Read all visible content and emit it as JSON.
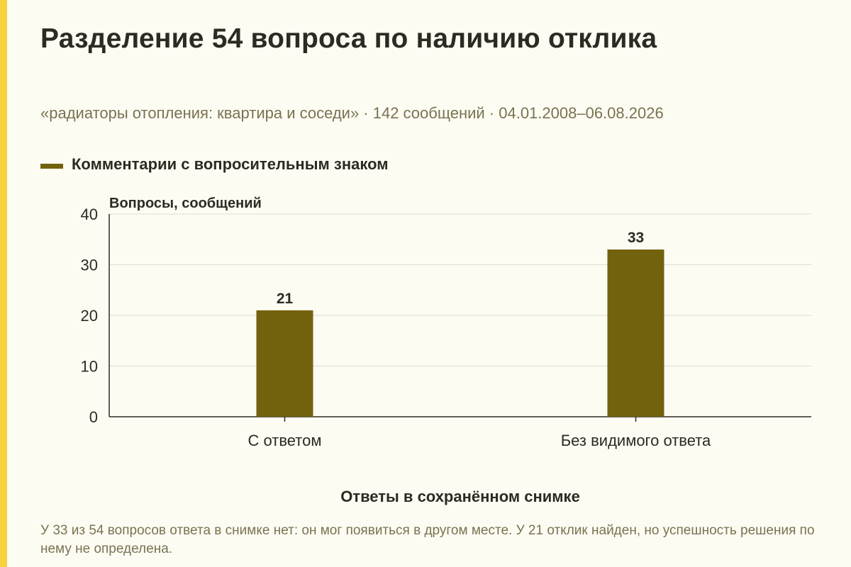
{
  "title": "Разделение 54 вопроса по наличию отклика",
  "subtitle": "«радиаторы отопления: квартира и соседи» · 142 сообщений · 04.01.2008–06.08.2026",
  "note": "У 33 из 54 вопросов ответа в снимке нет: он мог появиться в другом месте. У 21 отклик найден, но успешность решения по нему не определена.",
  "colors": {
    "bar": "#73620d",
    "accent": "#f7d23e",
    "grid": "#dcdccf",
    "axis": "#2b2b22",
    "text": "#2b2b22",
    "muted": "#7a7250"
  },
  "chart_data": {
    "type": "bar",
    "categories": [
      "С ответом",
      "Без видимого ответа"
    ],
    "series": [
      {
        "name": "Комментарии с вопросительным знаком",
        "values": [
          21,
          33
        ]
      }
    ],
    "data_labels": [
      "21",
      "33"
    ],
    "ylabel": "Вопросы, сообщений",
    "xlabel": "Ответы в сохранённом снимке",
    "ylim": [
      0,
      40
    ],
    "yticks": [
      0,
      10,
      20,
      30,
      40
    ],
    "grid": true,
    "legend_position": "top-left"
  }
}
